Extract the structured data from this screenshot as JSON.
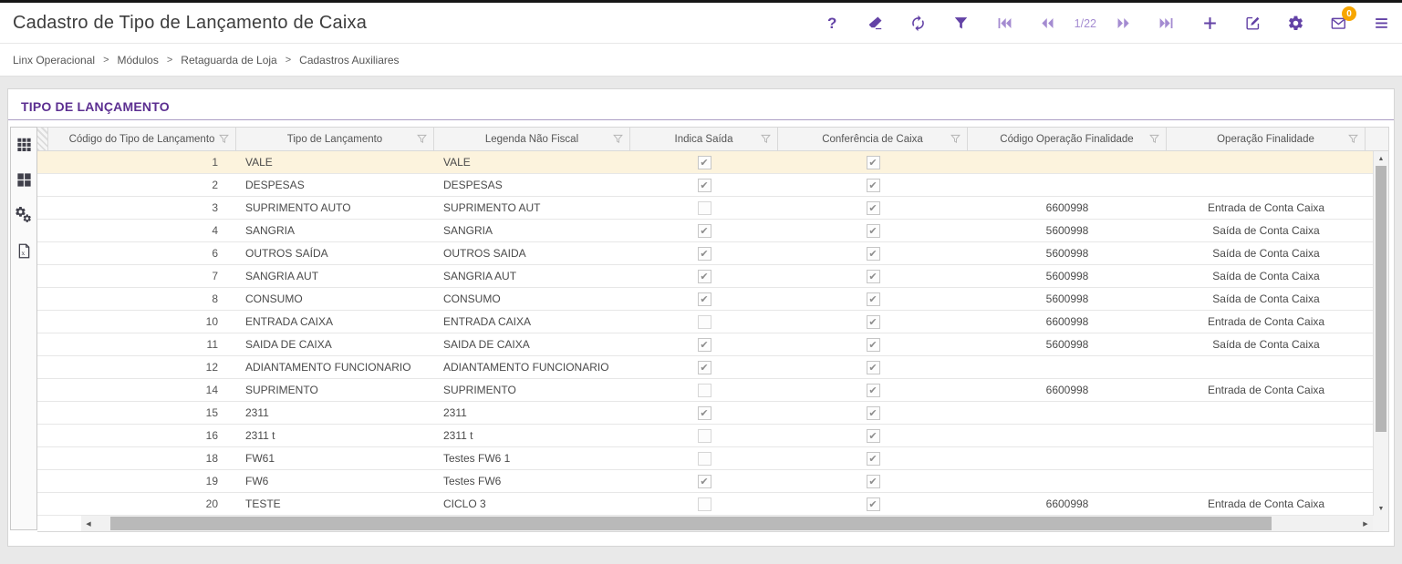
{
  "header": {
    "title": "Cadastro de Tipo de Lançamento de Caixa",
    "toolbar": {
      "help_glyph": "?",
      "page_indicator": "1/22",
      "mail_badge": "0",
      "icons": [
        "help-icon",
        "eraser-icon",
        "refresh-icon",
        "filter-icon",
        "first-page-icon",
        "prev-page-icon",
        "next-page-icon",
        "last-page-icon",
        "add-icon",
        "edit-icon",
        "gear-icon",
        "mail-icon",
        "menu-icon"
      ]
    }
  },
  "breadcrumb": {
    "items": [
      "Linx Operacional",
      "Módulos",
      "Retaguarda de Loja",
      "Cadastros Auxiliares"
    ],
    "separator": ">"
  },
  "section": {
    "title": "TIPO DE LANÇAMENTO"
  },
  "side_tools": [
    "grid-view-icon",
    "card-view-icon",
    "gears-icon",
    "excel-export-icon"
  ],
  "table": {
    "columns": [
      {
        "key": "codigo",
        "label": "Código do Tipo de Lançamento"
      },
      {
        "key": "tipo",
        "label": "Tipo de Lançamento"
      },
      {
        "key": "legenda",
        "label": "Legenda Não Fiscal"
      },
      {
        "key": "indica_saida",
        "label": "Indica Saída"
      },
      {
        "key": "conferencia",
        "label": "Conferência de Caixa"
      },
      {
        "key": "codigo_op",
        "label": "Código Operação Finalidade"
      },
      {
        "key": "operacao",
        "label": "Operação Finalidade"
      }
    ],
    "rows": [
      {
        "codigo": "1",
        "tipo": "VALE",
        "legenda": "VALE",
        "indica_saida": true,
        "conferencia": true,
        "codigo_op": "",
        "operacao": ""
      },
      {
        "codigo": "2",
        "tipo": "DESPESAS",
        "legenda": "DESPESAS",
        "indica_saida": true,
        "conferencia": true,
        "codigo_op": "",
        "operacao": ""
      },
      {
        "codigo": "3",
        "tipo": "SUPRIMENTO AUTO",
        "legenda": "SUPRIMENTO AUT",
        "indica_saida": false,
        "conferencia": true,
        "codigo_op": "6600998",
        "operacao": "Entrada de Conta Caixa"
      },
      {
        "codigo": "4",
        "tipo": "SANGRIA",
        "legenda": "SANGRIA",
        "indica_saida": true,
        "conferencia": true,
        "codigo_op": "5600998",
        "operacao": "Saída de Conta Caixa"
      },
      {
        "codigo": "6",
        "tipo": "OUTROS SAÍDA",
        "legenda": "OUTROS SAIDA",
        "indica_saida": true,
        "conferencia": true,
        "codigo_op": "5600998",
        "operacao": "Saída de Conta Caixa"
      },
      {
        "codigo": "7",
        "tipo": "SANGRIA AUT",
        "legenda": "SANGRIA AUT",
        "indica_saida": true,
        "conferencia": true,
        "codigo_op": "5600998",
        "operacao": "Saída de Conta Caixa"
      },
      {
        "codigo": "8",
        "tipo": "CONSUMO",
        "legenda": "CONSUMO",
        "indica_saida": true,
        "conferencia": true,
        "codigo_op": "5600998",
        "operacao": "Saída de Conta Caixa"
      },
      {
        "codigo": "10",
        "tipo": "ENTRADA CAIXA",
        "legenda": "ENTRADA CAIXA",
        "indica_saida": false,
        "conferencia": true,
        "codigo_op": "6600998",
        "operacao": "Entrada de Conta Caixa"
      },
      {
        "codigo": "11",
        "tipo": "SAIDA DE CAIXA",
        "legenda": "SAIDA DE CAIXA",
        "indica_saida": true,
        "conferencia": true,
        "codigo_op": "5600998",
        "operacao": "Saída de Conta Caixa"
      },
      {
        "codigo": "12",
        "tipo": "ADIANTAMENTO FUNCIONARIO",
        "legenda": "ADIANTAMENTO FUNCIONARIO",
        "indica_saida": true,
        "conferencia": true,
        "codigo_op": "",
        "operacao": ""
      },
      {
        "codigo": "14",
        "tipo": "SUPRIMENTO",
        "legenda": "SUPRIMENTO",
        "indica_saida": false,
        "conferencia": true,
        "codigo_op": "6600998",
        "operacao": "Entrada de Conta Caixa"
      },
      {
        "codigo": "15",
        "tipo": "2311",
        "legenda": "2311",
        "indica_saida": true,
        "conferencia": true,
        "codigo_op": "",
        "operacao": ""
      },
      {
        "codigo": "16",
        "tipo": "2311 t",
        "legenda": "2311 t",
        "indica_saida": false,
        "conferencia": true,
        "codigo_op": "",
        "operacao": ""
      },
      {
        "codigo": "18",
        "tipo": "FW61",
        "legenda": "Testes FW6 1",
        "indica_saida": false,
        "conferencia": true,
        "codigo_op": "",
        "operacao": ""
      },
      {
        "codigo": "19",
        "tipo": "FW6",
        "legenda": "Testes FW6",
        "indica_saida": true,
        "conferencia": true,
        "codigo_op": "",
        "operacao": ""
      },
      {
        "codigo": "20",
        "tipo": "TESTE",
        "legenda": "CICLO 3",
        "indica_saida": false,
        "conferencia": true,
        "codigo_op": "6600998",
        "operacao": "Entrada de Conta Caixa"
      }
    ]
  },
  "colors": {
    "accent_purple": "#6342a6",
    "accent_purple_light": "#a48bd1",
    "badge_orange": "#f7a600",
    "section_title_purple": "#5c2f91",
    "highlight_row": "#fcf3dd"
  }
}
